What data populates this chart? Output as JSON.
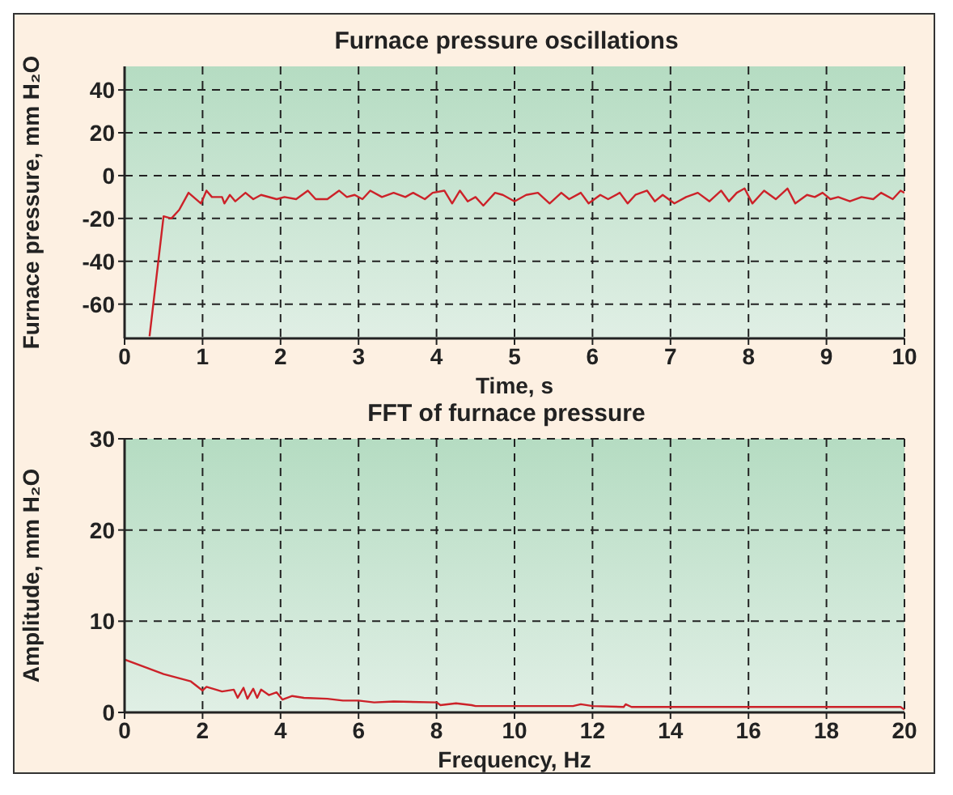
{
  "chart_data": [
    {
      "type": "line",
      "title": "Furnace pressure oscillations",
      "xlabel": "Time, s",
      "ylabel": "Furnace pressure, mm H₂O",
      "xlim": [
        0,
        10
      ],
      "xticks": [
        0,
        1,
        2,
        3,
        4,
        5,
        6,
        7,
        8,
        9,
        10
      ],
      "ylim": [
        -76,
        51
      ],
      "yticks": [
        -60,
        -40,
        -20,
        0,
        20,
        40
      ],
      "grid": true,
      "marker": "none",
      "line_style": "solid",
      "series": [
        {
          "color": "#cc2229",
          "x": [
            0.32,
            0.5,
            0.6,
            0.7,
            0.82,
            0.98,
            1.05,
            1.12,
            1.25,
            1.28,
            1.35,
            1.42,
            1.55,
            1.65,
            1.75,
            1.95,
            2.05,
            2.2,
            2.35,
            2.45,
            2.6,
            2.75,
            2.85,
            2.95,
            3.05,
            3.15,
            3.3,
            3.45,
            3.6,
            3.7,
            3.85,
            3.95,
            4.1,
            4.2,
            4.3,
            4.4,
            4.5,
            4.6,
            4.75,
            4.85,
            5.0,
            5.15,
            5.3,
            5.45,
            5.6,
            5.7,
            5.85,
            5.95,
            6.1,
            6.2,
            6.35,
            6.45,
            6.55,
            6.7,
            6.8,
            6.9,
            7.05,
            7.2,
            7.35,
            7.5,
            7.65,
            7.75,
            7.85,
            7.95,
            8.05,
            8.2,
            8.35,
            8.5,
            8.6,
            8.75,
            8.85,
            8.95,
            9.05,
            9.15,
            9.3,
            9.45,
            9.6,
            9.7,
            9.85,
            9.95,
            10
          ],
          "values": [
            -75,
            -19,
            -20,
            -16,
            -8,
            -13,
            -7,
            -10,
            -10,
            -13,
            -9,
            -12,
            -8,
            -11,
            -9,
            -11,
            -10,
            -11,
            -7,
            -11,
            -11,
            -7,
            -10,
            -9,
            -11,
            -7,
            -10,
            -8,
            -10,
            -8,
            -11,
            -8,
            -7,
            -13,
            -7,
            -12,
            -10,
            -14,
            -8,
            -9,
            -12,
            -9,
            -8,
            -13,
            -8,
            -11,
            -8,
            -13,
            -9,
            -11,
            -8,
            -13,
            -9,
            -7,
            -12,
            -9,
            -13,
            -10,
            -8,
            -12,
            -7,
            -12,
            -8,
            -6,
            -13,
            -7,
            -11,
            -6,
            -13,
            -9,
            -10,
            -8,
            -11,
            -10,
            -12,
            -10,
            -11,
            -8,
            -11,
            -7,
            -8
          ]
        }
      ]
    },
    {
      "type": "line",
      "title": "FFT of furnace pressure",
      "xlabel": "Frequency, Hz",
      "ylabel": "Amplitude, mm H₂O",
      "xlim": [
        0,
        20
      ],
      "xticks": [
        0,
        2,
        4,
        6,
        8,
        10,
        12,
        14,
        16,
        18,
        20
      ],
      "ylim": [
        0,
        30
      ],
      "yticks": [
        0,
        10,
        20,
        30
      ],
      "grid": true,
      "marker": "none",
      "line_style": "solid",
      "series": [
        {
          "color": "#cc2229",
          "x": [
            0,
            0.5,
            1,
            1.7,
            2,
            2.1,
            2.5,
            2.8,
            2.9,
            3.05,
            3.15,
            3.3,
            3.4,
            3.5,
            3.7,
            3.9,
            4.05,
            4.3,
            4.6,
            5.2,
            5.6,
            6,
            6.4,
            6.9,
            8,
            8.1,
            8.5,
            8.9,
            9,
            11.5,
            11.7,
            12,
            12.8,
            12.85,
            13,
            19.9,
            20
          ],
          "values": [
            5.8,
            5,
            4.2,
            3.4,
            2.4,
            2.8,
            2.3,
            2.5,
            1.6,
            2.7,
            1.5,
            2.6,
            1.6,
            2.5,
            1.9,
            2.2,
            1.4,
            1.8,
            1.6,
            1.5,
            1.3,
            1.3,
            1.1,
            1.2,
            1.1,
            0.8,
            1,
            0.8,
            0.7,
            0.7,
            0.9,
            0.7,
            0.6,
            0.9,
            0.6,
            0.6,
            0.3
          ]
        }
      ]
    }
  ]
}
